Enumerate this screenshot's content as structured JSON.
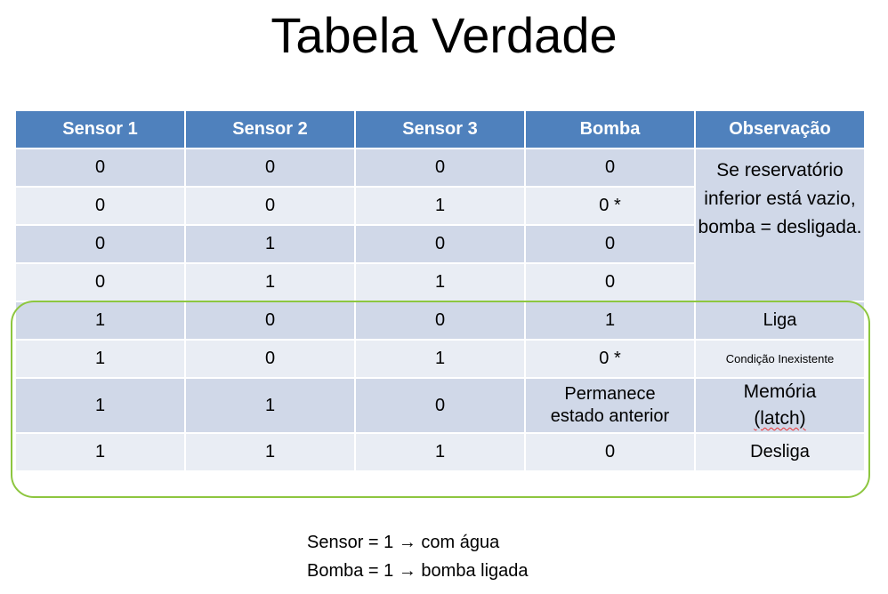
{
  "title": "Tabela Verdade",
  "table": {
    "headers": [
      "Sensor 1",
      "Sensor 2",
      "Sensor 3",
      "Bomba",
      "Observação"
    ],
    "rows": [
      {
        "s1": "0",
        "s2": "0",
        "s3": "0",
        "bomba": "0"
      },
      {
        "s1": "0",
        "s2": "0",
        "s3": "1",
        "bomba": "0 *"
      },
      {
        "s1": "0",
        "s2": "1",
        "s3": "0",
        "bomba": "0"
      },
      {
        "s1": "0",
        "s2": "1",
        "s3": "1",
        "bomba": "0"
      },
      {
        "s1": "1",
        "s2": "0",
        "s3": "0",
        "bomba": "1",
        "obs": "Liga"
      },
      {
        "s1": "1",
        "s2": "0",
        "s3": "1",
        "bomba": "0 *",
        "obs": "Condição Inexistente"
      },
      {
        "s1": "1",
        "s2": "1",
        "s3": "0",
        "bomba_line1": "Permanece",
        "bomba_line2": "estado anterior",
        "obs_line1": "Memória",
        "obs_line2": "(latch)"
      },
      {
        "s1": "1",
        "s2": "1",
        "s3": "1",
        "bomba": "0",
        "obs": "Desliga"
      }
    ],
    "merged_observation": "Se reservatório inferior está vazio, bomba = desligada."
  },
  "legend": {
    "line1_left": "Sensor = 1",
    "line1_right": "com água",
    "line2_left": "Bomba = 1",
    "line2_right": "bomba ligada",
    "arrow": "→"
  },
  "colors": {
    "header": "#4F81BD",
    "row_dark": "#D0D8E8",
    "row_light": "#E9EDF4",
    "highlight": "#8DC63F"
  }
}
